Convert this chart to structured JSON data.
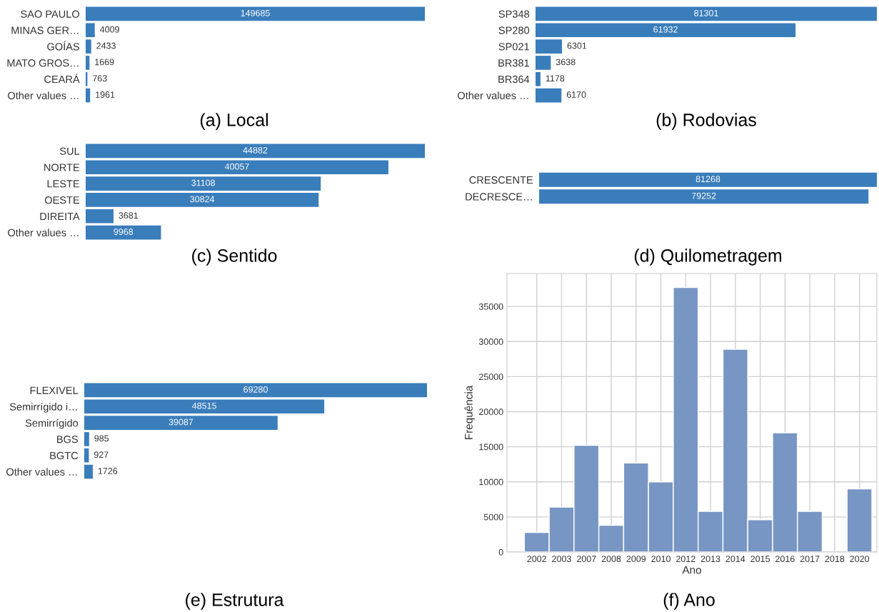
{
  "chart_data": [
    {
      "type": "bar",
      "orientation": "horizontal",
      "title": "(a) Local",
      "categories": [
        "SAO PAULO",
        "MINAS GER…",
        "GOÍAS",
        "MATO GROS…",
        "CEARÁ",
        "Other values …"
      ],
      "values": [
        149685,
        4009,
        2433,
        1669,
        763,
        1961
      ],
      "color": "#3a7dbb",
      "data_labels": true
    },
    {
      "type": "bar",
      "orientation": "horizontal",
      "title": "(b) Rodovias",
      "categories": [
        "SP348",
        "SP280",
        "SP021",
        "BR381",
        "BR364",
        "Other values …"
      ],
      "values": [
        81301,
        61932,
        6301,
        3638,
        1178,
        6170
      ],
      "color": "#3a7dbb",
      "data_labels": true
    },
    {
      "type": "bar",
      "orientation": "horizontal",
      "title": "(c) Sentido",
      "categories": [
        "SUL",
        "NORTE",
        "LESTE",
        "OESTE",
        "DIREITA",
        "Other values …"
      ],
      "values": [
        44882,
        40057,
        31108,
        30824,
        3681,
        9968
      ],
      "color": "#3a7dbb",
      "data_labels": true
    },
    {
      "type": "bar",
      "orientation": "horizontal",
      "title": "(d) Quilometragem",
      "categories": [
        "CRESCENTE",
        "DECRESCE…"
      ],
      "values": [
        81268,
        79252
      ],
      "color": "#3a7dbb",
      "data_labels": true
    },
    {
      "type": "bar",
      "orientation": "horizontal",
      "title": "(e) Estrutura",
      "categories": [
        "FLEXIVEL",
        "Semirrígido i…",
        "Semirrígido",
        "BGS",
        "BGTC",
        "Other values …"
      ],
      "values": [
        69280,
        48515,
        39087,
        985,
        927,
        1726
      ],
      "color": "#3a7dbb",
      "data_labels": true
    },
    {
      "type": "bar",
      "title": "(f) Ano",
      "xlabel": "Ano",
      "ylabel": "Frequência",
      "categories": [
        "2002",
        "2003",
        "2007",
        "2008",
        "2009",
        "2010",
        "2012",
        "2013",
        "2014",
        "2015",
        "2016",
        "2017",
        "2018",
        "2020"
      ],
      "values": [
        2800,
        6400,
        15200,
        3800,
        12700,
        10000,
        37700,
        5800,
        28900,
        4600,
        17000,
        5800,
        null,
        9000
      ],
      "color": "#7896c4",
      "ylim": [
        0,
        39700
      ],
      "yticks": [
        0,
        5000,
        10000,
        15000,
        20000,
        25000,
        30000,
        35000
      ],
      "grid": true
    }
  ]
}
